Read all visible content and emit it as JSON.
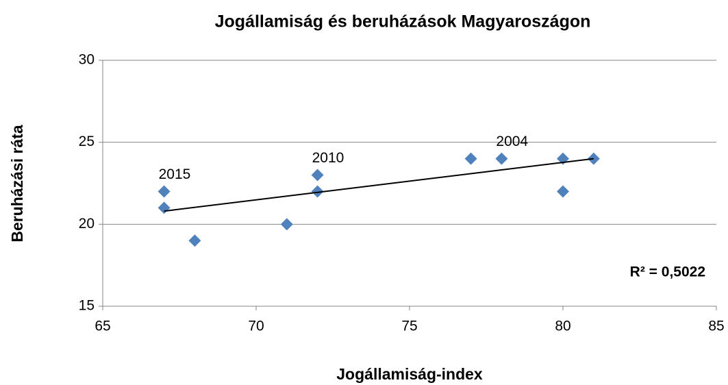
{
  "chart_data": {
    "type": "scatter",
    "title": "Jogállamiság és beruházások Magyaroszágon",
    "x_label": "Jogállamiság-index",
    "y_label": "Beruházási ráta",
    "x": [
      67,
      67,
      68,
      71,
      72,
      72,
      77,
      78,
      80,
      80,
      81
    ],
    "series": [
      {
        "name": "Beruházási ráta",
        "color": "#4f81bd",
        "values": [
          22,
          21,
          19,
          20,
          23,
          22,
          24,
          24,
          24,
          22,
          24
        ]
      }
    ],
    "trendline": {
      "x": [
        67,
        81
      ],
      "values": [
        20.8,
        24.0
      ],
      "color": "#000000"
    },
    "r_squared_label": "R² = 0,5022",
    "annotations": [
      {
        "text": "2015",
        "x": 67,
        "y": 22
      },
      {
        "text": "2010",
        "x": 72,
        "y": 23
      },
      {
        "text": "2004",
        "x": 78,
        "y": 24
      }
    ],
    "xlim": [
      65,
      85
    ],
    "xticks": [
      65,
      70,
      75,
      80,
      85
    ],
    "ylim": [
      15,
      30
    ],
    "yticks": [
      15,
      20,
      25,
      30
    ],
    "grid": true
  }
}
